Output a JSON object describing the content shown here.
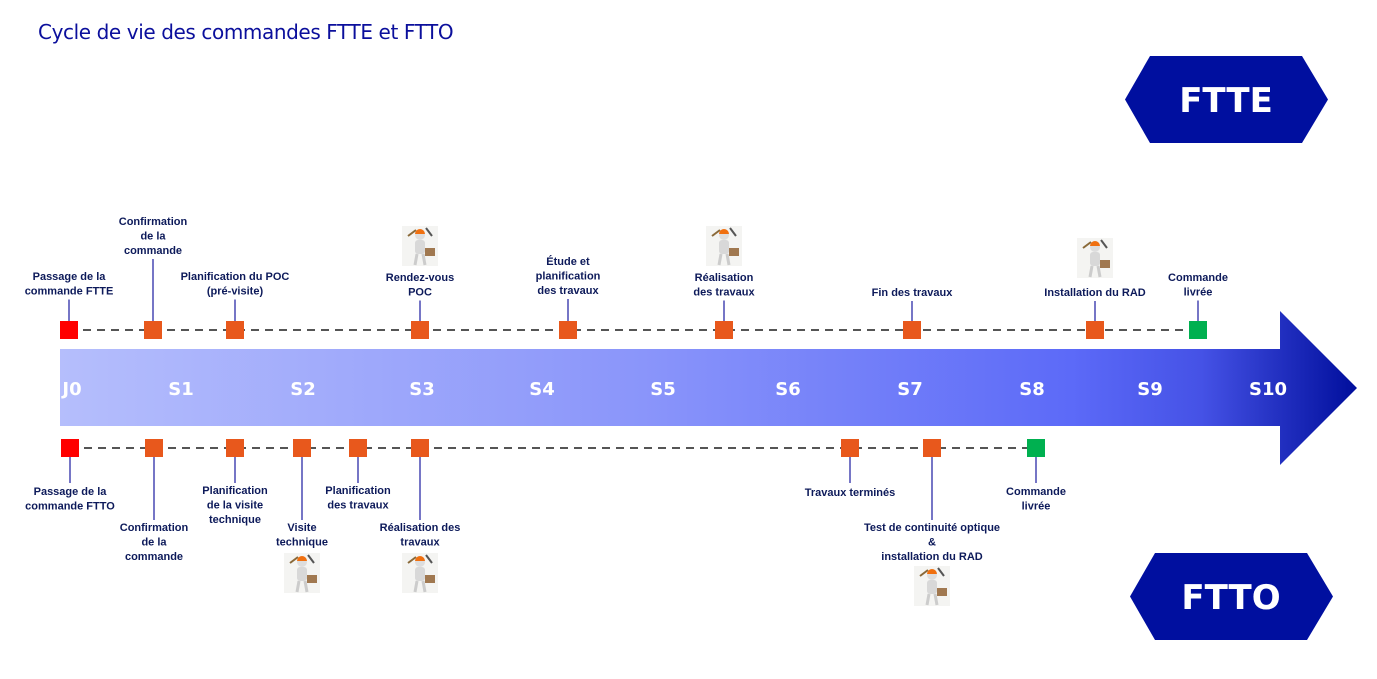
{
  "title": "Cycle de vie des commandes FTTE et FTTO",
  "colors": {
    "start": "#ff0000",
    "step": "#e8581c",
    "done": "#00b050",
    "accent": "#000f9f",
    "connector": "#1a1aa0"
  },
  "badges": {
    "ftte": "FTTE",
    "ftto": "FTTO"
  },
  "weeks": [
    "J0",
    "S1",
    "S2",
    "S3",
    "S4",
    "S5",
    "S6",
    "S7",
    "S8",
    "S9",
    "S10"
  ],
  "ftte": [
    {
      "lines": [
        "Passage de la",
        "commande FTTE"
      ],
      "status": "start"
    },
    {
      "lines": [
        "Confirmation",
        "de la",
        "commande"
      ],
      "status": "step"
    },
    {
      "lines": [
        "Planification du POC",
        "(pré-visite)"
      ],
      "status": "step"
    },
    {
      "lines": [
        "Rendez-vous",
        "POC"
      ],
      "status": "step",
      "icon": "technician-icon"
    },
    {
      "lines": [
        "Étude et",
        "planification",
        "des travaux"
      ],
      "status": "step"
    },
    {
      "lines": [
        "Réalisation",
        "des travaux"
      ],
      "status": "step",
      "icon": "technician-icon"
    },
    {
      "lines": [
        "Fin des travaux"
      ],
      "status": "step"
    },
    {
      "lines": [
        "Installation du RAD"
      ],
      "status": "step",
      "icon": "technician-icon"
    },
    {
      "lines": [
        "Commande",
        "livrée"
      ],
      "status": "done"
    }
  ],
  "ftto": [
    {
      "lines": [
        "Passage de la",
        "commande FTTO"
      ],
      "status": "start"
    },
    {
      "lines": [
        "Confirmation",
        "de la",
        "commande"
      ],
      "status": "step"
    },
    {
      "lines": [
        "Planification",
        "de la visite",
        "technique"
      ],
      "status": "step"
    },
    {
      "lines": [
        "Visite",
        "technique"
      ],
      "status": "step",
      "icon": "technician-icon"
    },
    {
      "lines": [
        "Planification",
        "des travaux"
      ],
      "status": "step"
    },
    {
      "lines": [
        "Réalisation des",
        "travaux"
      ],
      "status": "step",
      "icon": "technician-icon"
    },
    {
      "lines": [
        "Travaux terminés"
      ],
      "status": "step"
    },
    {
      "lines": [
        "Test de continuité optique",
        "&",
        "installation du RAD"
      ],
      "status": "step",
      "icon": "technician-icon"
    },
    {
      "lines": [
        "Commande",
        "livrée"
      ],
      "status": "done"
    }
  ]
}
